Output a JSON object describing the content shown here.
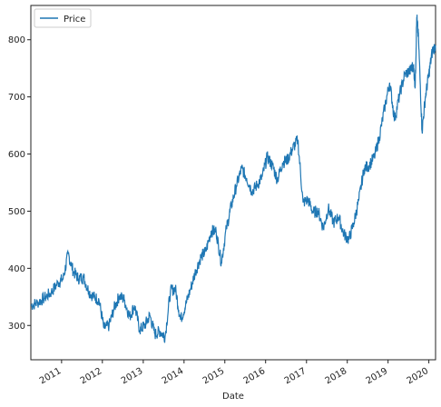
{
  "chart_data": {
    "type": "line",
    "xlabel": "Date",
    "ylabel": "",
    "title": "",
    "grid": false,
    "legend": {
      "placement": "top-left",
      "entries": [
        "Price"
      ]
    },
    "xlim": [
      "2010-04-01",
      "2020-03-01"
    ],
    "ylim": [
      240,
      860
    ],
    "x_ticks": [
      {
        "date": "2011-01-01",
        "label": "2011"
      },
      {
        "date": "2012-01-01",
        "label": "2012"
      },
      {
        "date": "2013-01-01",
        "label": "2013"
      },
      {
        "date": "2014-01-01",
        "label": "2014"
      },
      {
        "date": "2015-01-01",
        "label": "2015"
      },
      {
        "date": "2016-01-01",
        "label": "2016"
      },
      {
        "date": "2017-01-01",
        "label": "2017"
      },
      {
        "date": "2018-01-01",
        "label": "2018"
      },
      {
        "date": "2019-01-01",
        "label": "2019"
      },
      {
        "date": "2020-01-01",
        "label": "2020"
      }
    ],
    "y_ticks": [
      300,
      400,
      500,
      600,
      700,
      800
    ],
    "series": [
      {
        "name": "Price",
        "color": "#1f77b4",
        "x": [
          "2010-04-01",
          "2010-06-01",
          "2010-08-01",
          "2010-10-01",
          "2010-12-01",
          "2011-01-15",
          "2011-03-01",
          "2011-04-15",
          "2011-06-01",
          "2011-07-15",
          "2011-09-01",
          "2011-10-15",
          "2011-12-01",
          "2012-01-15",
          "2012-03-01",
          "2012-04-15",
          "2012-06-01",
          "2012-07-15",
          "2012-09-01",
          "2012-10-15",
          "2012-12-01",
          "2013-01-15",
          "2013-03-01",
          "2013-04-15",
          "2013-06-01",
          "2013-07-15",
          "2013-09-01",
          "2013-10-15",
          "2013-12-01",
          "2014-01-15",
          "2014-03-01",
          "2014-04-15",
          "2014-06-01",
          "2014-07-15",
          "2014-09-01",
          "2014-10-15",
          "2014-12-01",
          "2015-01-15",
          "2015-03-01",
          "2015-04-15",
          "2015-06-01",
          "2015-07-15",
          "2015-09-01",
          "2015-10-15",
          "2015-12-01",
          "2016-01-15",
          "2016-03-01",
          "2016-04-15",
          "2016-06-01",
          "2016-07-15",
          "2016-09-01",
          "2016-10-15",
          "2016-12-01",
          "2017-01-15",
          "2017-03-01",
          "2017-04-15",
          "2017-06-01",
          "2017-07-15",
          "2017-09-01",
          "2017-10-15",
          "2017-12-01",
          "2018-01-15",
          "2018-03-01",
          "2018-04-15",
          "2018-06-01",
          "2018-07-15",
          "2018-09-01",
          "2018-10-15",
          "2018-12-01",
          "2019-01-15",
          "2019-03-01",
          "2019-04-15",
          "2019-06-01",
          "2019-07-15",
          "2019-08-15",
          "2019-09-01",
          "2019-09-15",
          "2019-10-01",
          "2019-11-01",
          "2019-12-01",
          "2020-01-01",
          "2020-02-01",
          "2020-03-01"
        ],
        "y": [
          335,
          340,
          348,
          358,
          375,
          382,
          425,
          395,
          382,
          385,
          360,
          350,
          345,
          295,
          300,
          330,
          352,
          345,
          315,
          335,
          292,
          300,
          318,
          285,
          290,
          280,
          360,
          365,
          310,
          335,
          365,
          395,
          420,
          430,
          465,
          465,
          410,
          470,
          510,
          545,
          575,
          558,
          535,
          545,
          560,
          595,
          580,
          555,
          585,
          590,
          610,
          625,
          515,
          520,
          498,
          500,
          470,
          505,
          480,
          490,
          460,
          450,
          480,
          520,
          575,
          580,
          595,
          630,
          680,
          725,
          660,
          705,
          740,
          745,
          755,
          720,
          840,
          800,
          640,
          700,
          740,
          780,
          790
        ]
      }
    ]
  }
}
